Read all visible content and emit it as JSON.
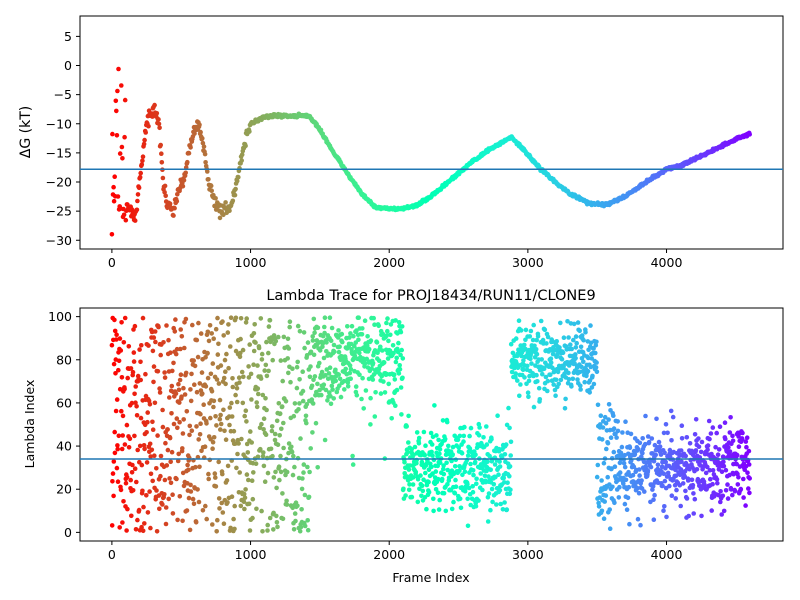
{
  "chart_data": [
    {
      "type": "scatter",
      "panel": "top",
      "title": "",
      "xlabel": "",
      "ylabel": "ΔG (kT)",
      "xlim": [
        -230,
        4840
      ],
      "ylim": [
        -31.5,
        8.5
      ],
      "xticks": [
        0,
        1000,
        2000,
        3000,
        4000
      ],
      "yticks": [
        -30,
        -25,
        -20,
        -15,
        -10,
        -5,
        0,
        5
      ],
      "hline": -17.8,
      "hline_color": "#1f77b4",
      "colormap": "rainbow (red at frame 0 → violet at last frame)",
      "trace_knots": [
        [
          0,
          -20
        ],
        [
          40,
          -24
        ],
        [
          80,
          -25
        ],
        [
          120,
          -24
        ],
        [
          170,
          -26
        ],
        [
          220,
          -16
        ],
        [
          250,
          -10
        ],
        [
          300,
          -7
        ],
        [
          340,
          -10
        ],
        [
          370,
          -20
        ],
        [
          400,
          -24
        ],
        [
          440,
          -25
        ],
        [
          480,
          -22
        ],
        [
          520,
          -20
        ],
        [
          560,
          -14
        ],
        [
          620,
          -9.5
        ],
        [
          660,
          -14
        ],
        [
          700,
          -20
        ],
        [
          750,
          -24
        ],
        [
          800,
          -25
        ],
        [
          860,
          -24
        ],
        [
          900,
          -20
        ],
        [
          950,
          -14
        ],
        [
          1000,
          -10
        ],
        [
          1100,
          -8.8
        ],
        [
          1200,
          -8.6
        ],
        [
          1300,
          -8.7
        ],
        [
          1420,
          -8.6
        ],
        [
          1500,
          -11
        ],
        [
          1600,
          -15
        ],
        [
          1700,
          -18.5
        ],
        [
          1800,
          -22
        ],
        [
          1900,
          -24.3
        ],
        [
          2000,
          -24.6
        ],
        [
          2100,
          -24.6
        ],
        [
          2200,
          -24
        ],
        [
          2300,
          -22.5
        ],
        [
          2450,
          -19.5
        ],
        [
          2600,
          -16.5
        ],
        [
          2750,
          -14
        ],
        [
          2880,
          -12.3
        ],
        [
          2950,
          -14
        ],
        [
          3100,
          -18
        ],
        [
          3300,
          -22
        ],
        [
          3450,
          -23.7
        ],
        [
          3580,
          -23.8
        ],
        [
          3700,
          -22.5
        ],
        [
          3850,
          -20
        ],
        [
          4000,
          -17.8
        ],
        [
          4100,
          -17.2
        ],
        [
          4250,
          -15.5
        ],
        [
          4400,
          -13.8
        ],
        [
          4600,
          -11.6
        ]
      ],
      "early_scatter_frames": [
        0,
        100
      ],
      "early_scatter_range": [
        -31,
        0
      ],
      "total_frames": 4600
    },
    {
      "type": "scatter",
      "panel": "bottom",
      "title": "Lambda Trace for PROJ18434/RUN11/CLONE9",
      "xlabel": "Frame Index",
      "ylabel": "Lambda Index",
      "xlim": [
        -230,
        4840
      ],
      "ylim": [
        -4,
        104
      ],
      "xticks": [
        0,
        1000,
        2000,
        3000,
        4000
      ],
      "yticks": [
        0,
        20,
        40,
        60,
        80,
        100
      ],
      "hline": 34,
      "hline_color": "#1f77b4",
      "colormap": "rainbow (red at frame 0 → violet at last frame)",
      "regimes": [
        {
          "x": [
            0,
            100
          ],
          "y": [
            0,
            100
          ]
        },
        {
          "x": [
            100,
            1450
          ],
          "y": [
            0,
            100
          ]
        },
        {
          "x": [
            1450,
            2100
          ],
          "y": [
            20,
            100
          ],
          "center": 80
        },
        {
          "x": [
            2100,
            2880
          ],
          "y": [
            0,
            70
          ],
          "center": 30
        },
        {
          "x": [
            2880,
            3500
          ],
          "y": [
            45,
            100
          ],
          "center": 80
        },
        {
          "x": [
            3500,
            3620
          ],
          "y": [
            0,
            60
          ]
        },
        {
          "x": [
            3620,
            4600
          ],
          "y": [
            0,
            72
          ],
          "center": 30
        }
      ],
      "total_frames": 4600
    }
  ]
}
